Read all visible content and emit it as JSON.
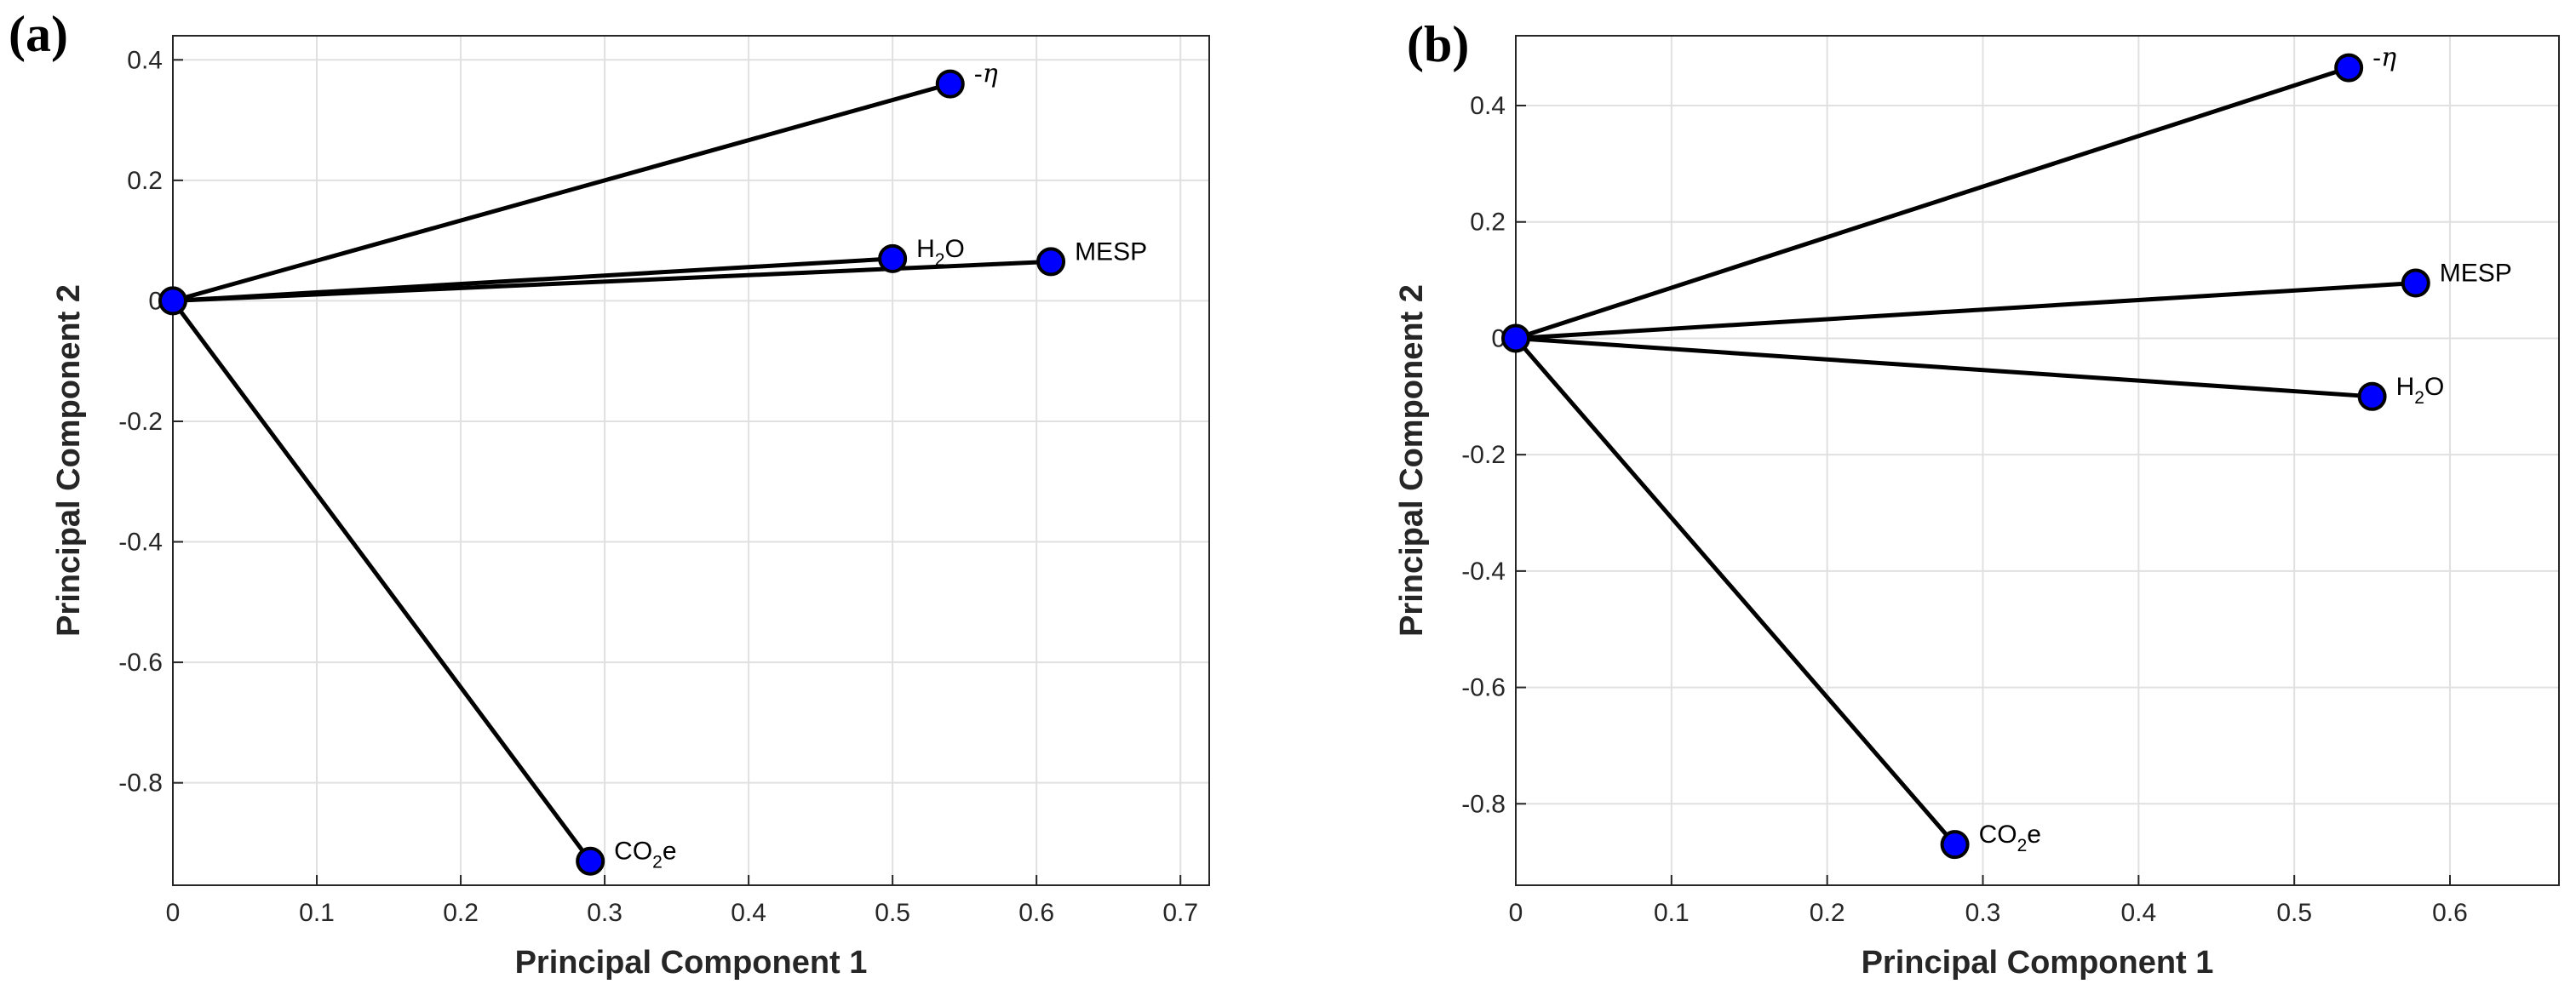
{
  "colors": {
    "marker_fill": "#0000ff",
    "marker_stroke": "#000000",
    "line": "#000000",
    "grid": "#e0e0e0",
    "axis": "#262626"
  },
  "chart_data": [
    {
      "type": "scatter",
      "panel_label": "(a)",
      "xlabel": "Principal Component 1",
      "ylabel": "Principal Component 2",
      "xlim": [
        0,
        0.72
      ],
      "ylim": [
        -0.97,
        0.44
      ],
      "x_ticks": [
        0,
        0.1,
        0.2,
        0.3,
        0.4,
        0.5,
        0.6,
        0.7
      ],
      "x_tick_labels": [
        "0",
        "0.1",
        "0.2",
        "0.3",
        "0.4",
        "0.5",
        "0.6",
        "0.7"
      ],
      "y_ticks": [
        0.4,
        0.2,
        0,
        -0.2,
        -0.4,
        -0.6,
        -0.8
      ],
      "y_tick_labels": [
        "0.4",
        "0.2",
        "0",
        "-0.2",
        "-0.4",
        "-0.6",
        "-0.8"
      ],
      "grid": true,
      "origin": [
        0,
        0
      ],
      "points": [
        {
          "label": "-η",
          "x": 0.54,
          "y": 0.36,
          "lbl_parts": [
            {
              "t": "-"
            },
            {
              "t": "η",
              "cls": "greek"
            }
          ]
        },
        {
          "label": "H2O",
          "x": 0.5,
          "y": 0.07,
          "lbl_parts": [
            {
              "t": "H"
            },
            {
              "t": "2",
              "cls": "sub"
            },
            {
              "t": "O"
            }
          ]
        },
        {
          "label": "MESP",
          "x": 0.61,
          "y": 0.065,
          "lbl_parts": [
            {
              "t": "MESP"
            }
          ]
        },
        {
          "label": "CO2e",
          "x": 0.29,
          "y": -0.93,
          "lbl_parts": [
            {
              "t": "CO"
            },
            {
              "t": "2",
              "cls": "sub"
            },
            {
              "t": "e"
            }
          ]
        }
      ]
    },
    {
      "type": "scatter",
      "panel_label": "(b)",
      "xlabel": "Principal Component 1",
      "ylabel": "Principal Component 2",
      "xlim": [
        0,
        0.67
      ],
      "ylim": [
        -0.94,
        0.52
      ],
      "x_ticks": [
        0,
        0.1,
        0.2,
        0.3,
        0.4,
        0.5,
        0.6
      ],
      "x_tick_labels": [
        "0",
        "0.1",
        "0.2",
        "0.3",
        "0.4",
        "0.5",
        "0.6"
      ],
      "y_ticks": [
        0.4,
        0.2,
        0,
        -0.2,
        -0.4,
        -0.6,
        -0.8
      ],
      "y_tick_labels": [
        "0.4",
        "0.2",
        "0",
        "-0.2",
        "-0.4",
        "-0.6",
        "-0.8"
      ],
      "grid": true,
      "origin": [
        0,
        0
      ],
      "points": [
        {
          "label": "-η",
          "x": 0.535,
          "y": 0.465,
          "lbl_parts": [
            {
              "t": "-"
            },
            {
              "t": "η",
              "cls": "greek"
            }
          ]
        },
        {
          "label": "MESP",
          "x": 0.578,
          "y": 0.095,
          "lbl_parts": [
            {
              "t": "MESP"
            }
          ]
        },
        {
          "label": "H2O",
          "x": 0.55,
          "y": -0.1,
          "lbl_parts": [
            {
              "t": "H"
            },
            {
              "t": "2",
              "cls": "sub"
            },
            {
              "t": "O"
            }
          ]
        },
        {
          "label": "CO2e",
          "x": 0.282,
          "y": -0.87,
          "lbl_parts": [
            {
              "t": "CO"
            },
            {
              "t": "2",
              "cls": "sub"
            },
            {
              "t": "e"
            }
          ]
        }
      ]
    }
  ]
}
